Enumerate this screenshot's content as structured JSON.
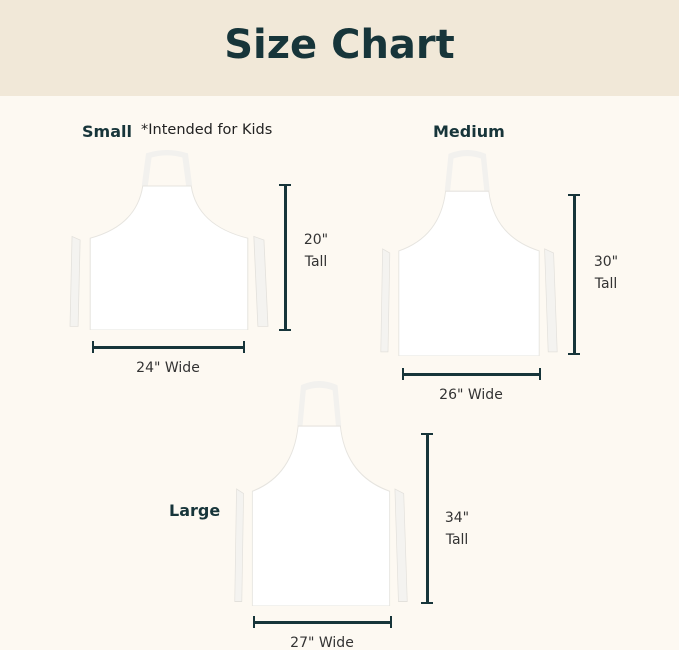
{
  "header": {
    "title": "Size Chart"
  },
  "sizes": {
    "small": {
      "name": "Small",
      "note": "*Intended for Kids",
      "height": "20\"",
      "height_unit": "Tall",
      "width": "24\" Wide"
    },
    "medium": {
      "name": "Medium",
      "height": "30\"",
      "height_unit": "Tall",
      "width": "26\" Wide"
    },
    "large": {
      "name": "Large",
      "height": "34\"",
      "height_unit": "Tall",
      "width": "27\" Wide"
    }
  },
  "colors": {
    "header_bg": "#f1e8d8",
    "page_bg": "#fdf9f2",
    "text": "#17353a",
    "apron": "#ffffff"
  }
}
